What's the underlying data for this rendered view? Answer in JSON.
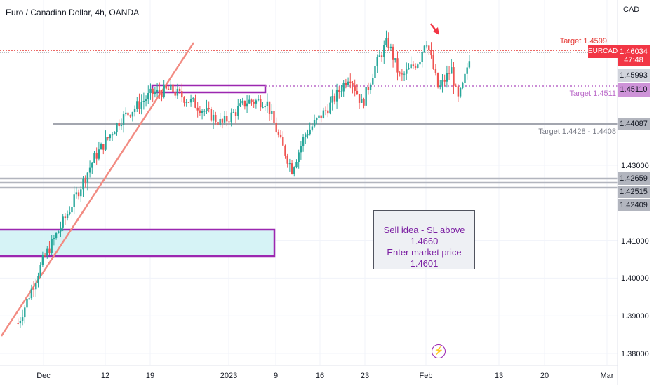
{
  "header": {
    "symbol_title": "Euro / Canadian Dollar, 4h, OANDA",
    "currency": "CAD"
  },
  "annotations": {
    "note_line1": "Sell idea - SL above 1.4660",
    "note_line2": "Enter market price 1.4601",
    "target1": "Target 1.4599",
    "target2": "Target 1.4511",
    "target3": "Target 1.4428 - 1.4408"
  },
  "price_scale": {
    "symbol_tag": "EURCAD",
    "current_price": "1.46034",
    "countdown": "47:48",
    "levels": [
      "1.45993",
      "1.45110",
      "1.44087",
      "1.42659",
      "1.42515",
      "1.42409"
    ],
    "ticks": [
      "1.43000",
      "1.41000",
      "1.40000",
      "1.39000",
      "1.38000"
    ]
  },
  "colors": {
    "up": "#26a69a",
    "down": "#ef5350",
    "purple": "#9c27b0",
    "zone_fill": "#d6f3f6",
    "trendline": "#f28b82",
    "level_gray": "#b2b5be"
  },
  "icons": {
    "alert": "lightning-icon",
    "arrow": "red-arrow-down-icon"
  },
  "chart_data": {
    "type": "candlestick",
    "title": "Euro / Canadian Dollar, 4h, OANDA",
    "x_ticks": [
      "Dec",
      "12",
      "19",
      "2023",
      "9",
      "16",
      "23",
      "Feb",
      "13",
      "20",
      "Mar"
    ],
    "y_ticks": [
      1.38,
      1.39,
      1.4,
      1.41,
      1.43
    ],
    "ylim": [
      1.3775,
      1.4745
    ],
    "grid": true,
    "current_price": 1.46034,
    "horizontal_levels": [
      1.46034,
      1.45993,
      1.4511,
      1.44087,
      1.42659,
      1.42515,
      1.42409
    ],
    "zones": [
      {
        "from": "start",
        "to": "Jan 10",
        "low": 1.4056,
        "high": 1.4128,
        "fill": "light-cyan",
        "border": "purple"
      },
      {
        "from": "Dec 19",
        "to": "Jan 10",
        "low": 1.4494,
        "high": 1.4512,
        "border": "purple"
      }
    ],
    "trendline": {
      "from": [
        "Nov 27",
        1.3855
      ],
      "to": [
        "Dec 29",
        1.4653
      ]
    },
    "path_keypoints": [
      [
        "Nov 27",
        1.388
      ],
      [
        "Dec 1",
        1.405
      ],
      [
        "Dec 5",
        1.418
      ],
      [
        "Dec 9",
        1.432
      ],
      [
        "Dec 13",
        1.442
      ],
      [
        "Dec 18",
        1.449
      ],
      [
        "Dec 21",
        1.45
      ],
      [
        "Dec 25",
        1.446
      ],
      [
        "Dec 29",
        1.441
      ],
      [
        "Jan 2",
        1.447
      ],
      [
        "Jan 5",
        1.447
      ],
      [
        "Jan 7",
        1.437
      ],
      [
        "Jan 9",
        1.429
      ],
      [
        "Jan 11",
        1.438
      ],
      [
        "Jan 15",
        1.446
      ],
      [
        "Jan 18",
        1.454
      ],
      [
        "Jan 20",
        1.446
      ],
      [
        "Jan 22",
        1.456
      ],
      [
        "Jan 24",
        1.463
      ],
      [
        "Jan 26",
        1.453
      ],
      [
        "Jan 29",
        1.458
      ],
      [
        "Jan 30",
        1.464
      ],
      [
        "Feb 1",
        1.45
      ],
      [
        "Feb 3",
        1.4555
      ],
      [
        "Feb 4",
        1.447
      ],
      [
        "Feb 5",
        1.452
      ],
      [
        "Feb 6",
        1.4603
      ]
    ]
  }
}
